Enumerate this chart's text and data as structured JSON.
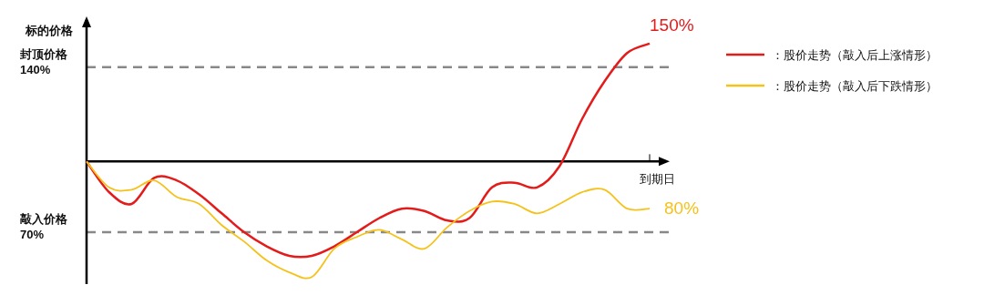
{
  "chart_data": {
    "type": "line",
    "ylabel": "标的价格",
    "xlabel": "到期日",
    "categories": [
      null,
      null,
      null,
      null,
      null,
      null,
      null,
      null,
      null,
      null,
      null,
      null,
      null,
      null,
      null,
      null,
      null,
      null,
      null,
      null,
      null,
      null,
      null,
      null,
      null,
      null
    ],
    "series": [
      {
        "name": "：股价走势（敲入后上涨情形）",
        "color": "#e31b1b",
        "values": [
          100,
          87,
          82,
          93,
          92,
          86,
          78,
          70,
          64,
          60,
          60,
          64,
          70,
          76,
          80,
          79,
          75,
          76,
          89,
          91,
          89,
          98,
          118,
          134,
          146,
          150
        ],
        "value_labels": [
          null,
          null,
          null,
          null,
          null,
          null,
          null,
          null,
          null,
          null,
          null,
          null,
          null,
          null,
          null,
          null,
          null,
          null,
          null,
          null,
          null,
          null,
          null,
          null,
          null,
          "150%"
        ]
      },
      {
        "name": "：股价走势（敲入后下跌情形）",
        "color": "#f5c21b",
        "values": [
          100,
          89,
          88,
          92,
          85,
          82,
          73,
          66,
          58,
          53,
          51,
          63,
          68,
          71,
          67,
          63,
          72,
          79,
          83,
          82,
          78,
          82,
          87,
          88,
          80,
          80
        ],
        "value_labels": [
          null,
          null,
          null,
          null,
          null,
          null,
          null,
          null,
          null,
          null,
          null,
          null,
          null,
          null,
          null,
          null,
          null,
          null,
          null,
          null,
          null,
          null,
          null,
          null,
          null,
          "80%"
        ]
      }
    ],
    "ylim": [
      48,
      160
    ],
    "ref_lines": [
      {
        "axis": "y",
        "value": 100,
        "color": "#000000",
        "line_style": "solid"
      },
      {
        "axis": "y",
        "value": 140,
        "label": "封顶价格\n140%",
        "color": "#888888",
        "line_style": "dashed"
      },
      {
        "axis": "y",
        "value": 70,
        "label": "敲入价格\n70%",
        "color": "#888888",
        "line_style": "dashed"
      }
    ],
    "legend": "right",
    "line_style": "solid",
    "marker": "none"
  }
}
